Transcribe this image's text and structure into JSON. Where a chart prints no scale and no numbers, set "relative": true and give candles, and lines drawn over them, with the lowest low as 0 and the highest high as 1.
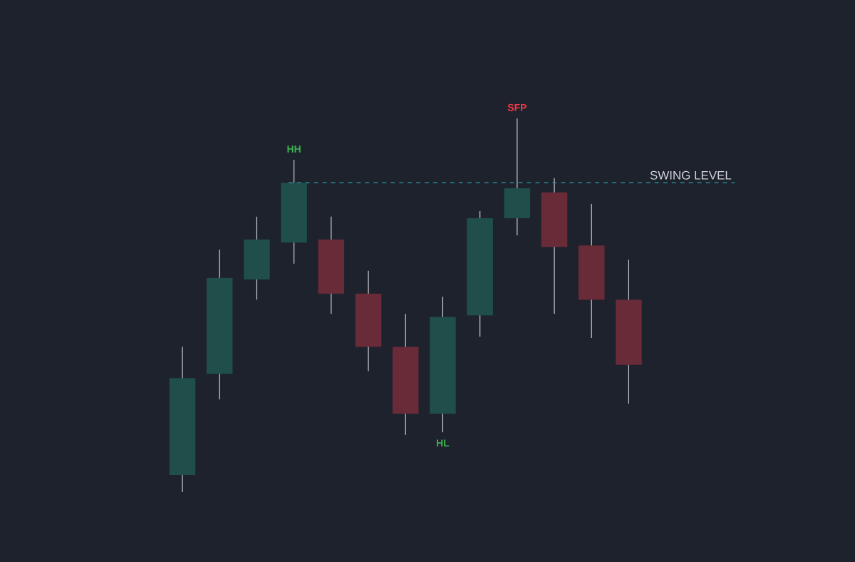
{
  "chart_data": {
    "type": "candlestick",
    "relative": true,
    "categories": [
      null,
      null,
      null,
      null,
      null,
      null,
      null,
      null,
      null,
      null,
      null,
      null,
      null
    ],
    "ohlc": [
      [
        0.046,
        0.389,
        0,
        0.305
      ],
      [
        0.317,
        0.649,
        0.248,
        0.573
      ],
      [
        0.569,
        0.737,
        0.515,
        0.676
      ],
      [
        0.668,
        0.889,
        0.611,
        0.828
      ],
      [
        0.676,
        0.737,
        0.477,
        0.531
      ],
      [
        0.531,
        0.592,
        0.324,
        0.389
      ],
      [
        0.389,
        0.477,
        0.153,
        0.21
      ],
      [
        0.21,
        0.523,
        0.16,
        0.469
      ],
      [
        0.473,
        0.752,
        0.416,
        0.733
      ],
      [
        0.733,
        1,
        0.687,
        0.813
      ],
      [
        0.802,
        0.84,
        0.477,
        0.656
      ],
      [
        0.66,
        0.771,
        0.412,
        0.515
      ],
      [
        0.515,
        0.622,
        0.237,
        0.34
      ]
    ],
    "colors": [
      "#1f4e4b",
      "#1f4e4b",
      "#1f4e4b",
      "#1f4e4b",
      "#6a2b39",
      "#6a2b39",
      "#6a2b39",
      "#1f4e4b",
      "#1f4e4b",
      "#1f4e4b",
      "#6a2b39",
      "#6a2b39",
      "#6a2b39"
    ],
    "ref_lines": [
      {
        "axis": "y",
        "value": 0.828,
        "label": "SWING LEVEL",
        "color": "#2a9bb0",
        "line_style": "dashed"
      }
    ],
    "annotations": [
      {
        "text": "HH",
        "y": 0.889
      },
      {
        "text": "HL",
        "y": 0.16
      },
      {
        "text": "SFP",
        "y": 1
      }
    ]
  }
}
